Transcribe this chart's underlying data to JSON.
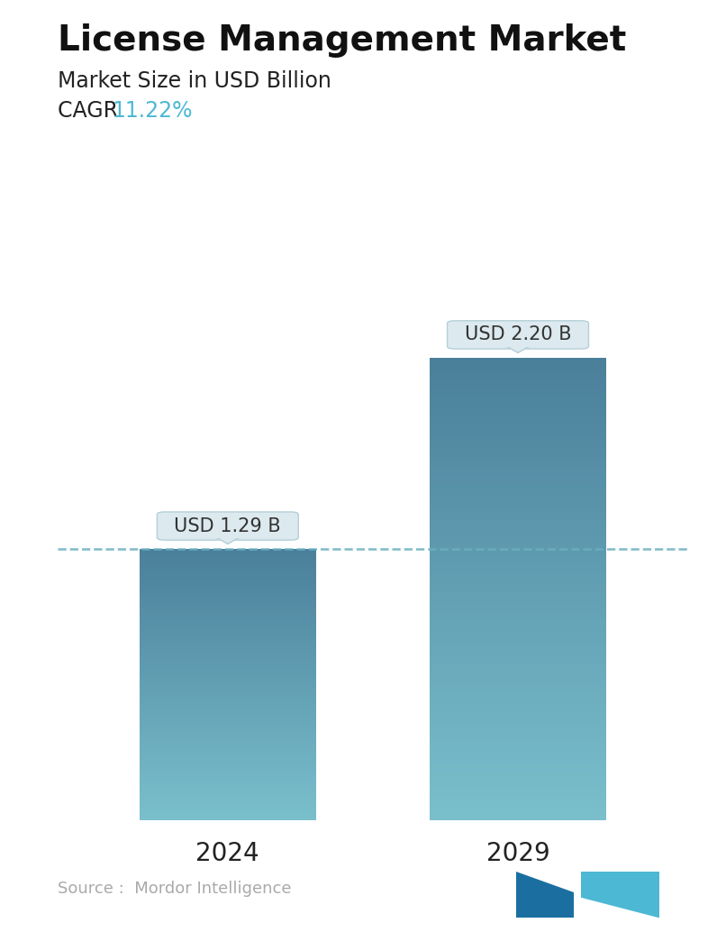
{
  "title": "License Management Market",
  "subtitle": "Market Size in USD Billion",
  "cagr_label": "CAGR  ",
  "cagr_value": "11.22%",
  "cagr_color": "#4db8d4",
  "categories": [
    "2024",
    "2029"
  ],
  "values": [
    1.29,
    2.2
  ],
  "labels": [
    "USD 1.29 B",
    "USD 2.20 B"
  ],
  "bar_color_top": "#4a7f9a",
  "bar_color_bottom": "#7abfcc",
  "dashed_line_color": "#6aafc0",
  "source_text": "Source :  Mordor Intelligence",
  "source_color": "#aaaaaa",
  "background_color": "#ffffff",
  "title_fontsize": 28,
  "subtitle_fontsize": 17,
  "cagr_fontsize": 17,
  "tick_fontsize": 20,
  "label_fontsize": 15,
  "source_fontsize": 13,
  "x_positions": [
    0.27,
    0.73
  ],
  "bar_width": 0.28,
  "ylim": [
    0,
    2.75
  ],
  "callout_box_color": "#dce9ee",
  "callout_border_color": "#b5cfd8"
}
